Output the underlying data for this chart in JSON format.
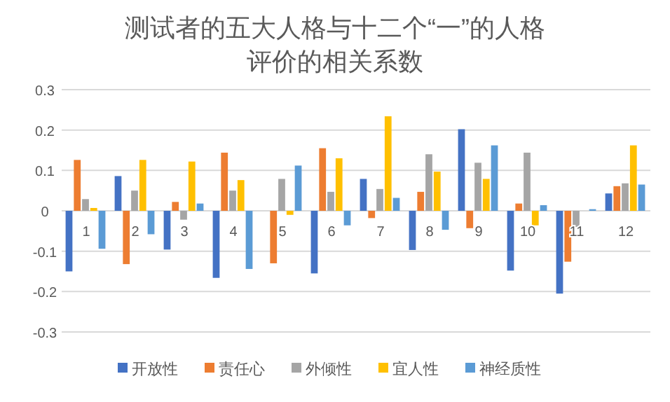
{
  "chart_data": {
    "type": "bar",
    "title": "测试者的五大人格与十二个“一”的人格评价的相关系数",
    "categories": [
      "1",
      "2",
      "3",
      "4",
      "5",
      "6",
      "7",
      "8",
      "9",
      "10",
      "11",
      "12"
    ],
    "series": [
      {
        "name": "开放性",
        "color": "#4472c4",
        "values": [
          -0.15,
          0.086,
          -0.096,
          -0.166,
          0,
          -0.155,
          0.079,
          -0.097,
          0.202,
          -0.148,
          -0.205,
          0.043
        ]
      },
      {
        "name": "责任心",
        "color": "#ed7d31",
        "values": [
          0.126,
          -0.132,
          0.022,
          0.144,
          -0.13,
          0.155,
          -0.018,
          0.047,
          -0.043,
          0.018,
          -0.126,
          0.061
        ]
      },
      {
        "name": "外倾性",
        "color": "#a5a5a5",
        "values": [
          0.029,
          0.05,
          -0.022,
          0.05,
          0.079,
          0.047,
          0.054,
          0.14,
          0.119,
          0.144,
          -0.04,
          0.068
        ]
      },
      {
        "name": "宜人性",
        "color": "#ffc000",
        "values": [
          0.007,
          0.126,
          0.122,
          0.076,
          -0.01,
          0.13,
          0.234,
          0.097,
          0.079,
          -0.036,
          0,
          0.162
        ]
      },
      {
        "name": "神经质性",
        "color": "#5b9bd5",
        "values": [
          -0.094,
          -0.058,
          0.018,
          -0.144,
          0.112,
          -0.036,
          0.032,
          -0.047,
          0.162,
          0.014,
          0.004,
          0.065
        ]
      }
    ],
    "ylim": [
      -0.3,
      0.3
    ],
    "yticks": [
      -0.3,
      -0.2,
      -0.1,
      0,
      0.1,
      0.2,
      0.3
    ],
    "grid": "y",
    "legend": "bottom"
  }
}
